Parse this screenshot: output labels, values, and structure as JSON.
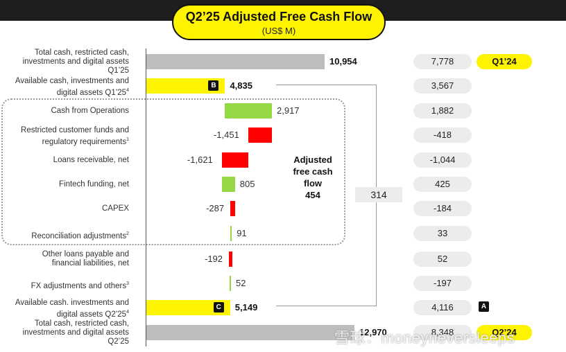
{
  "header": {
    "title": "Q2’25 Adjusted Free Cash Flow",
    "unit": "(US$ M)"
  },
  "colors": {
    "accent_yellow": "#fff400",
    "gray_bar": "#bdbdbd",
    "positive": "#95d845",
    "negative": "#ff0000",
    "dark": "#1e1e1e"
  },
  "chart_data": {
    "type": "bar",
    "subtype": "waterfall",
    "categories": [
      "Total cash, restricted cash, investments and digital assets Q1’25",
      "Available cash, investments and digital assets Q1’25",
      "Cash from Operations",
      "Restricted customer funds and regulatory requirements",
      "Loans receivable, net",
      "Fintech funding, net",
      "CAPEX",
      "Reconciliation adjustments",
      "Other loans payable and financial liabilities, net",
      "FX adjustments and others",
      "Available cash. investments and digital assets Q2’25",
      "Total cash, restricted cash, investments and digital assets Q2’25"
    ],
    "rows": [
      {
        "label_lines": [
          "Total cash, restricted cash,",
          "investments and digital assets",
          "Q1’25"
        ],
        "sup": "",
        "value": 10954,
        "label": "10,954",
        "kind": "total",
        "bold": true
      },
      {
        "label_lines": [
          "Available cash, investments and",
          "digital assets Q1’25"
        ],
        "sup": "4",
        "value": 4835,
        "label": "4,835",
        "kind": "available",
        "bold": true,
        "badge": "B"
      },
      {
        "label_lines": [
          "Cash from Operations"
        ],
        "sup": "",
        "value": 2917,
        "label": "2,917",
        "kind": "delta"
      },
      {
        "label_lines": [
          "Restricted customer funds and",
          "regulatory requirements"
        ],
        "sup": "1",
        "value": -1451,
        "label": "-1,451",
        "kind": "delta"
      },
      {
        "label_lines": [
          "Loans receivable, net"
        ],
        "sup": "",
        "value": -1621,
        "label": "-1,621",
        "kind": "delta"
      },
      {
        "label_lines": [
          "Fintech funding, net"
        ],
        "sup": "",
        "value": 805,
        "label": "805",
        "kind": "delta"
      },
      {
        "label_lines": [
          "CAPEX"
        ],
        "sup": "",
        "value": -287,
        "label": "-287",
        "kind": "delta"
      },
      {
        "label_lines": [
          "Reconciliation adjustments"
        ],
        "sup": "2",
        "value": 91,
        "label": "91",
        "kind": "delta"
      },
      {
        "label_lines": [
          "Other loans payable and",
          "financial liabilities, net"
        ],
        "sup": "",
        "value": -192,
        "label": "-192",
        "kind": "delta"
      },
      {
        "label_lines": [
          "FX adjustments and others"
        ],
        "sup": "3",
        "value": 52,
        "label": "52",
        "kind": "delta"
      },
      {
        "label_lines": [
          "Available cash. investments and",
          "digital assets Q2’25"
        ],
        "sup": "4",
        "value": 5149,
        "label": "5,149",
        "kind": "available",
        "bold": true,
        "badge": "C"
      },
      {
        "label_lines": [
          "Total cash, restricted cash,",
          "investments and digital assets",
          "Q2’25"
        ],
        "sup": "",
        "value": 12970,
        "label": "12,970",
        "kind": "total",
        "bold": true
      }
    ],
    "comparison": {
      "values": [
        "7,778",
        "3,567",
        "1,882",
        "-418",
        "-1,044",
        "425",
        "-184",
        "33",
        "52",
        "-197",
        "4,116",
        "8,348"
      ],
      "top_tag": "Q1’24",
      "bottom_tag": "Q2’24",
      "note_badge": "A"
    },
    "adjusted_fcf": {
      "lines": [
        "Adjusted",
        "free cash",
        "flow"
      ],
      "value": "454"
    },
    "bracket_value": "314"
  },
  "watermark": "雪球：moneyneversleeps"
}
